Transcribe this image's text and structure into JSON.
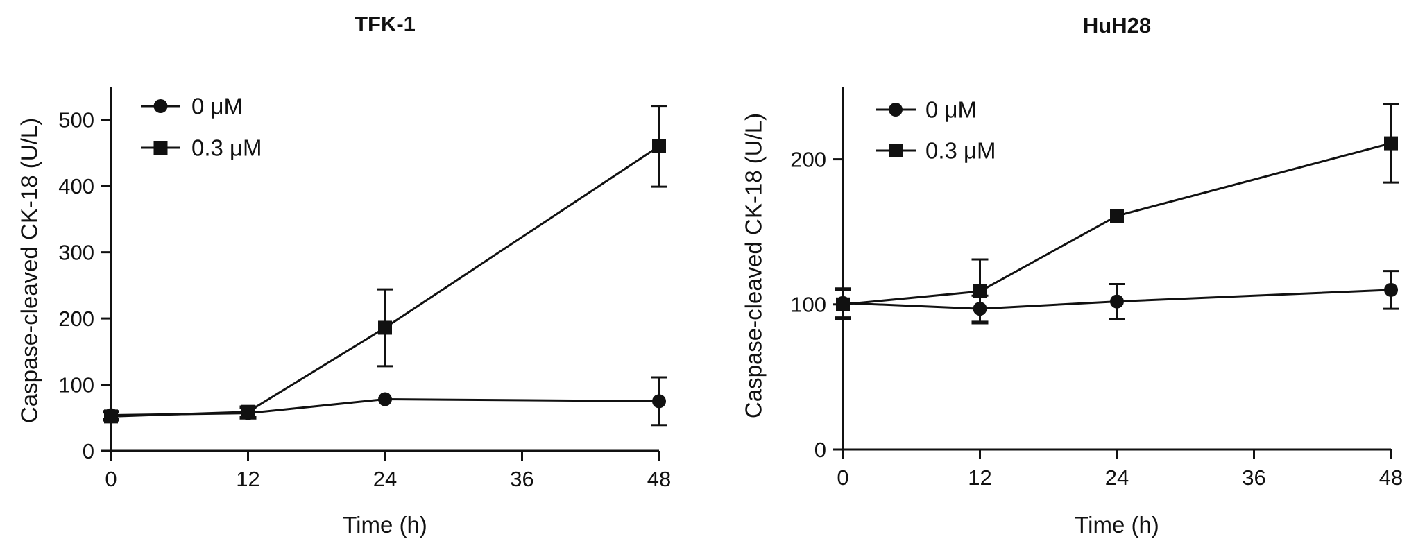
{
  "chart_data": [
    {
      "type": "line",
      "title": "TFK-1",
      "xlabel": "Time (h)",
      "ylabel": "Caspase-cleaved CK-18 (U/L)",
      "xlim": [
        0,
        48
      ],
      "ylim": [
        0,
        550
      ],
      "xticks": [
        0,
        12,
        24,
        36,
        48
      ],
      "yticks": [
        0,
        100,
        200,
        300,
        400,
        500
      ],
      "xtick_labels": [
        "0",
        "12",
        "24",
        "36",
        "48"
      ],
      "ytick_labels": [
        "0",
        "100",
        "200",
        "300",
        "400",
        "500"
      ],
      "grid": false,
      "legend_position": "top-left",
      "x": [
        0,
        12,
        24,
        48
      ],
      "series": [
        {
          "name": "0 μM",
          "marker": "circle",
          "values": [
            54,
            57,
            78,
            75
          ],
          "errors": [
            6,
            8,
            0,
            36
          ]
        },
        {
          "name": "0.3 μM",
          "marker": "square",
          "values": [
            52,
            59,
            186,
            460
          ],
          "errors": [
            6,
            8,
            58,
            61
          ]
        }
      ]
    },
    {
      "type": "line",
      "title": "HuH28",
      "xlabel": "Time (h)",
      "ylabel": "Caspase-cleaved CK-18 (U/L)",
      "xlim": [
        0,
        48
      ],
      "ylim": [
        0,
        250
      ],
      "xticks": [
        0,
        12,
        24,
        36,
        48
      ],
      "yticks": [
        0,
        100,
        200
      ],
      "xtick_labels": [
        "0",
        "12",
        "24",
        "36",
        "48"
      ],
      "ytick_labels": [
        "0",
        "100",
        "200"
      ],
      "grid": false,
      "legend_position": "top-left",
      "x": [
        0,
        12,
        24,
        48
      ],
      "series": [
        {
          "name": "0 μM",
          "marker": "circle",
          "values": [
            101,
            97,
            102,
            110
          ],
          "errors": [
            10,
            9,
            12,
            13
          ]
        },
        {
          "name": "0.3 μM",
          "marker": "square",
          "values": [
            100,
            109,
            161,
            211
          ],
          "errors": [
            10,
            22,
            0,
            27
          ]
        }
      ]
    }
  ]
}
